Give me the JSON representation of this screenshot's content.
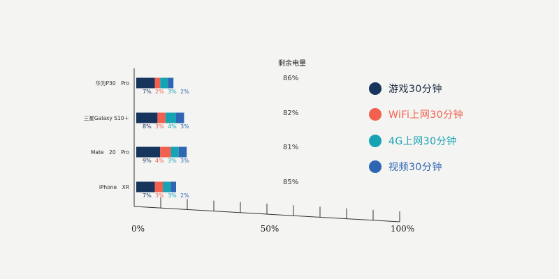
{
  "colors": {
    "game": "#16345c",
    "wifi": "#f2604f",
    "g4": "#18a3b3",
    "video": "#2e66b4"
  },
  "chart_data": {
    "type": "bar",
    "stacked": true,
    "orientation": "horizontal",
    "categories": [
      "华为P30　Pro",
      "三星Galaxy S10＋",
      "Mate　20　Pro",
      "iPhone　XR"
    ],
    "series": [
      {
        "name": "游戏30分钟",
        "key": "game",
        "values": [
          7,
          8,
          9,
          7
        ]
      },
      {
        "name": "WiFi上网30分钟",
        "key": "wifi",
        "values": [
          2,
          3,
          4,
          3
        ]
      },
      {
        "name": "4G上网30分钟",
        "key": "g4",
        "values": [
          3,
          4,
          3,
          3
        ]
      },
      {
        "name": "视频30分钟",
        "key": "video",
        "values": [
          2,
          3,
          3,
          2
        ]
      }
    ],
    "remaining_header": "剩余电量",
    "remaining": [
      "86%",
      "82%",
      "81%",
      "85%"
    ],
    "xlim": [
      0,
      100
    ],
    "x_ticks": [
      "0%",
      "50%",
      "100%"
    ],
    "legend_position": "right"
  }
}
